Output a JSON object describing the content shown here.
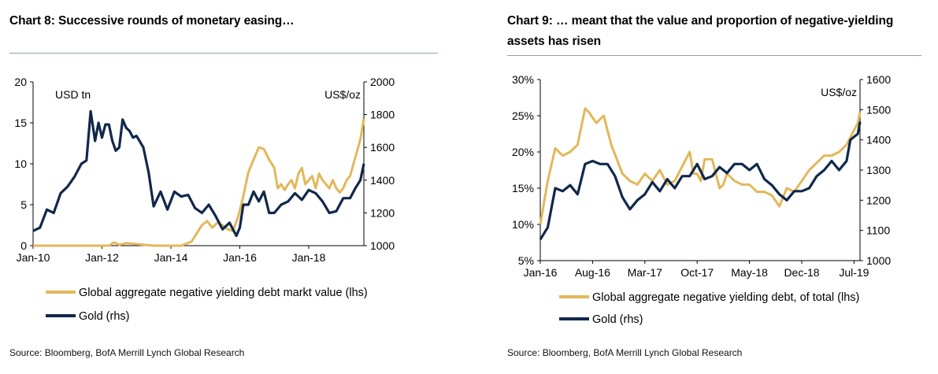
{
  "colors": {
    "gold_debt": "#E3B75A",
    "gold_price": "#10284A",
    "axis": "#000000",
    "rule": "#8AA0B8"
  },
  "chart_data": [
    {
      "type": "line",
      "title": "Chart 8: Successive rounds of monetary easing…",
      "source": "Source: Bloomberg, BofA Merrill Lynch Global Research",
      "y_left_unit": "USD tn",
      "y_right_unit": "US$/oz",
      "x_ticks": [
        "Jan-10",
        "Jan-12",
        "Jan-14",
        "Jan-16",
        "Jan-18"
      ],
      "x_tick_years": [
        2010,
        2012,
        2014,
        2016,
        2018
      ],
      "xlim": [
        2010.0,
        2019.6
      ],
      "ylim_left": [
        0,
        20
      ],
      "ylim_right": [
        1000,
        2000
      ],
      "y_left_ticks": [
        "0",
        "5",
        "10",
        "15",
        "20"
      ],
      "y_right_ticks": [
        "1000",
        "1200",
        "1400",
        "1600",
        "1800",
        "2000"
      ],
      "series": [
        {
          "name": "Global aggregate negative yielding debt markt value (lhs)",
          "axis": "left",
          "color": "gold_debt",
          "x": [
            2010.0,
            2012.2,
            2012.35,
            2012.5,
            2012.7,
            2013.5,
            2014.3,
            2014.6,
            2014.75,
            2014.9,
            2015.05,
            2015.2,
            2015.35,
            2015.5,
            2015.65,
            2015.8,
            2015.95,
            2016.1,
            2016.25,
            2016.4,
            2016.55,
            2016.7,
            2016.85,
            2017.0,
            2017.1,
            2017.2,
            2017.3,
            2017.4,
            2017.5,
            2017.6,
            2017.7,
            2017.8,
            2017.9,
            2018.0,
            2018.1,
            2018.2,
            2018.3,
            2018.4,
            2018.5,
            2018.6,
            2018.7,
            2018.8,
            2018.9,
            2019.0,
            2019.1,
            2019.2,
            2019.3,
            2019.4,
            2019.5,
            2019.6
          ],
          "y": [
            0,
            0,
            0.4,
            0.1,
            0.3,
            0,
            0,
            0.5,
            1.5,
            2.5,
            3.0,
            2.2,
            2.8,
            2.5,
            2.0,
            1.8,
            3.5,
            6.0,
            9.0,
            10.5,
            12.0,
            11.8,
            10.5,
            9.5,
            7.0,
            7.5,
            6.8,
            7.5,
            8.0,
            7.0,
            8.8,
            9.5,
            7.5,
            8.0,
            8.5,
            7.0,
            8.8,
            8.0,
            7.5,
            7.0,
            8.0,
            7.0,
            6.5,
            7.0,
            8.0,
            8.5,
            10.0,
            11.5,
            13.0,
            15.5
          ]
        },
        {
          "name": "Gold (rhs)",
          "axis": "right",
          "color": "gold_price",
          "x": [
            2010.0,
            2010.2,
            2010.4,
            2010.6,
            2010.8,
            2011.0,
            2011.2,
            2011.4,
            2011.55,
            2011.67,
            2011.8,
            2011.9,
            2012.0,
            2012.1,
            2012.2,
            2012.3,
            2012.4,
            2012.5,
            2012.6,
            2012.7,
            2012.8,
            2012.9,
            2013.0,
            2013.2,
            2013.35,
            2013.5,
            2013.7,
            2013.9,
            2014.1,
            2014.3,
            2014.5,
            2014.7,
            2014.9,
            2015.1,
            2015.3,
            2015.5,
            2015.7,
            2015.9,
            2016.0,
            2016.1,
            2016.25,
            2016.4,
            2016.55,
            2016.7,
            2016.85,
            2017.0,
            2017.2,
            2017.4,
            2017.6,
            2017.8,
            2018.0,
            2018.2,
            2018.4,
            2018.6,
            2018.8,
            2019.0,
            2019.2,
            2019.35,
            2019.5,
            2019.6
          ],
          "y": [
            1090,
            1110,
            1220,
            1200,
            1320,
            1360,
            1420,
            1500,
            1520,
            1820,
            1640,
            1750,
            1660,
            1740,
            1740,
            1640,
            1580,
            1600,
            1770,
            1720,
            1700,
            1660,
            1670,
            1600,
            1450,
            1240,
            1330,
            1220,
            1330,
            1300,
            1310,
            1230,
            1200,
            1250,
            1180,
            1100,
            1140,
            1060,
            1110,
            1250,
            1250,
            1330,
            1270,
            1330,
            1200,
            1200,
            1250,
            1270,
            1320,
            1280,
            1340,
            1320,
            1270,
            1200,
            1210,
            1290,
            1290,
            1350,
            1400,
            1500
          ]
        }
      ]
    },
    {
      "type": "line",
      "title": "Chart 9: … meant that the value and proportion of negative-yielding assets has risen",
      "source": "Source: Bloomberg, BofA Merrill Lynch Global Research",
      "y_right_unit": "US$/oz",
      "x_ticks": [
        "Jan-16",
        "Aug-16",
        "Mar-17",
        "Oct-17",
        "May-18",
        "Dec-18",
        "Jul-19"
      ],
      "x_tick_months": [
        0,
        7,
        14,
        21,
        28,
        35,
        42
      ],
      "xlim": [
        0,
        42.8
      ],
      "ylim_left": [
        5,
        30
      ],
      "ylim_right": [
        1000,
        1600
      ],
      "y_left_ticks": [
        "5%",
        "10%",
        "15%",
        "20%",
        "25%",
        "30%"
      ],
      "y_right_ticks": [
        "1000",
        "1100",
        "1200",
        "1300",
        "1400",
        "1500",
        "1600"
      ],
      "series": [
        {
          "name": "Global aggregate negative yielding debt, of total (lhs)",
          "axis": "left",
          "color": "gold_debt",
          "x": [
            0,
            1,
            2,
            3,
            4,
            5,
            6,
            6.5,
            7.5,
            8.5,
            9.5,
            11,
            12,
            13,
            14,
            15,
            16,
            17,
            18,
            19,
            20,
            20.5,
            21,
            21.5,
            22,
            23,
            24,
            24.5,
            25,
            26,
            27,
            28,
            29,
            30,
            31,
            32,
            33,
            34,
            35,
            36,
            37,
            38,
            39,
            40,
            41,
            41.5,
            42,
            42.5,
            42.8
          ],
          "y": [
            10,
            16,
            20.5,
            19.5,
            20,
            21,
            26,
            25.5,
            24,
            25,
            21,
            17,
            16,
            15.5,
            17,
            16,
            17.5,
            15.5,
            16,
            18,
            20,
            17,
            17,
            16,
            19,
            19,
            15,
            15.5,
            17,
            16,
            15.5,
            15.5,
            14.5,
            14.5,
            14,
            12.5,
            15,
            14.5,
            16,
            17.5,
            18.5,
            19.5,
            19.5,
            20,
            21,
            22,
            23,
            24,
            25.5
          ]
        },
        {
          "name": "Gold (rhs)",
          "axis": "right",
          "color": "gold_price",
          "x": [
            0,
            1,
            2,
            3,
            4,
            5,
            6,
            7,
            8,
            9,
            10,
            11,
            12,
            13,
            14,
            15,
            16,
            17,
            18,
            19,
            20,
            21,
            22,
            23,
            24,
            25,
            26,
            27,
            28,
            29,
            30,
            31,
            32,
            33,
            34,
            35,
            36,
            37,
            38,
            39,
            40,
            41,
            41.5,
            42,
            42.5,
            42.8
          ],
          "y": [
            1070,
            1110,
            1240,
            1230,
            1250,
            1220,
            1320,
            1330,
            1320,
            1320,
            1280,
            1210,
            1170,
            1200,
            1220,
            1260,
            1230,
            1270,
            1240,
            1280,
            1280,
            1320,
            1270,
            1280,
            1310,
            1290,
            1320,
            1320,
            1300,
            1320,
            1270,
            1250,
            1220,
            1200,
            1230,
            1230,
            1240,
            1280,
            1300,
            1330,
            1300,
            1330,
            1400,
            1410,
            1420,
            1460
          ]
        }
      ]
    }
  ]
}
